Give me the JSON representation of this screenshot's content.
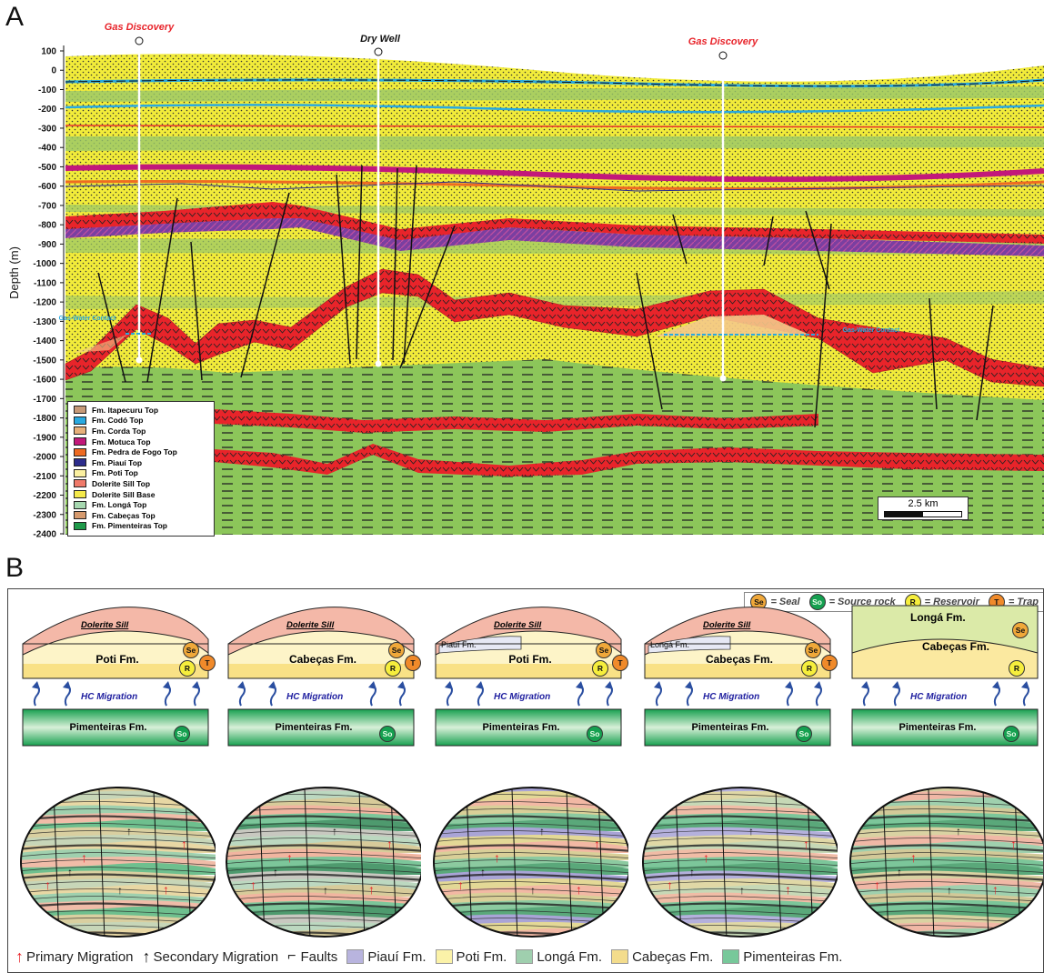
{
  "panel_a": {
    "letter": "A",
    "y_axis_label": "Depth (m)",
    "y_ticks": [
      "100",
      "0",
      "-100",
      "-200",
      "-300",
      "-400",
      "-500",
      "-600",
      "-700",
      "-800",
      "-900",
      "-1000",
      "-1100",
      "-1200",
      "-1300",
      "-1400",
      "-1500",
      "-1600",
      "-1700",
      "-1800",
      "-1900",
      "-2000",
      "-2100",
      "-2200",
      "-2300",
      "-2400"
    ],
    "wells": [
      {
        "name": "Gas Discovery",
        "color": "#e8232a"
      },
      {
        "name": "Dry Well",
        "color": "#111111"
      },
      {
        "name": "Gas Discovery",
        "color": "#e8232a"
      }
    ],
    "contacts": [
      "Gas-Water Contact",
      "Gas-Water Contact"
    ],
    "legend": [
      {
        "label": "Fm. Itapecuru Top",
        "color": "#c79a78"
      },
      {
        "label": "Fm. Codó Top",
        "color": "#29a9e0"
      },
      {
        "label": "Fm. Corda Top",
        "color": "#e7b07a"
      },
      {
        "label": "Fm. Motuca Top",
        "color": "#c2187a"
      },
      {
        "label": "Fm. Pedra de Fogo Top",
        "color": "#ee6b22"
      },
      {
        "label": "Fm. Piauí Top",
        "color": "#2c2c8c"
      },
      {
        "label": "Fm. Poti Top",
        "color": "#fbf0a0"
      },
      {
        "label": "Dolerite Sill Top",
        "color": "#f07a6a"
      },
      {
        "label": "Dolerite Sill Base",
        "color": "#f4e94a"
      },
      {
        "label": "Fm. Longá Top",
        "color": "#a6d8b0"
      },
      {
        "label": "Fm. Cabeças Top",
        "color": "#d69a6e"
      },
      {
        "label": "Fm. Pimenteiras Top",
        "color": "#1f9a4a"
      }
    ],
    "scale_label": "2.5 km"
  },
  "panel_b": {
    "letter": "B",
    "key": [
      {
        "badge": "Se",
        "text": "= Seal"
      },
      {
        "badge": "So",
        "text": "= Source rock"
      },
      {
        "badge": "R",
        "text": "= Reservoir"
      },
      {
        "badge": "T",
        "text": "= Trap"
      }
    ],
    "scenarios": [
      {
        "sill": "Dolerite Sill",
        "upper": "",
        "reservoir": "Poti Fm.",
        "source": "Pimenteiras Fm.",
        "migration": "HC Migration"
      },
      {
        "sill": "Dolerite Sill",
        "upper": "",
        "reservoir": "Cabeças Fm.",
        "source": "Pimenteiras Fm.",
        "migration": "HC Migration"
      },
      {
        "sill": "Dolerite Sill",
        "upper": "Piauí Fm.",
        "reservoir": "Poti Fm.",
        "source": "Pimenteiras Fm.",
        "migration": "HC Migration"
      },
      {
        "sill": "Dolerite Sill",
        "upper": "Longá Fm.",
        "reservoir": "Cabeças Fm.",
        "source": "Pimenteiras Fm.",
        "migration": "HC Migration"
      },
      {
        "sill": "",
        "upper": "Longá Fm.",
        "reservoir": "Cabeças Fm.",
        "source": "Pimenteiras Fm.",
        "migration": "HC Migration"
      }
    ],
    "legend": [
      {
        "label": "Primary Migration",
        "kind": "red-arrow"
      },
      {
        "label": "Secondary Migration",
        "kind": "black-arrow"
      },
      {
        "label": "Faults",
        "kind": "fault"
      },
      {
        "label": "Piauí Fm.",
        "color": "#b8b4de"
      },
      {
        "label": "Poti Fm.",
        "color": "#fbf2a8"
      },
      {
        "label": "Longá Fm.",
        "color": "#9fcfae"
      },
      {
        "label": "Cabeças Fm.",
        "color": "#f3dc8c"
      },
      {
        "label": "Pimenteiras Fm.",
        "color": "#77c89a"
      }
    ]
  }
}
